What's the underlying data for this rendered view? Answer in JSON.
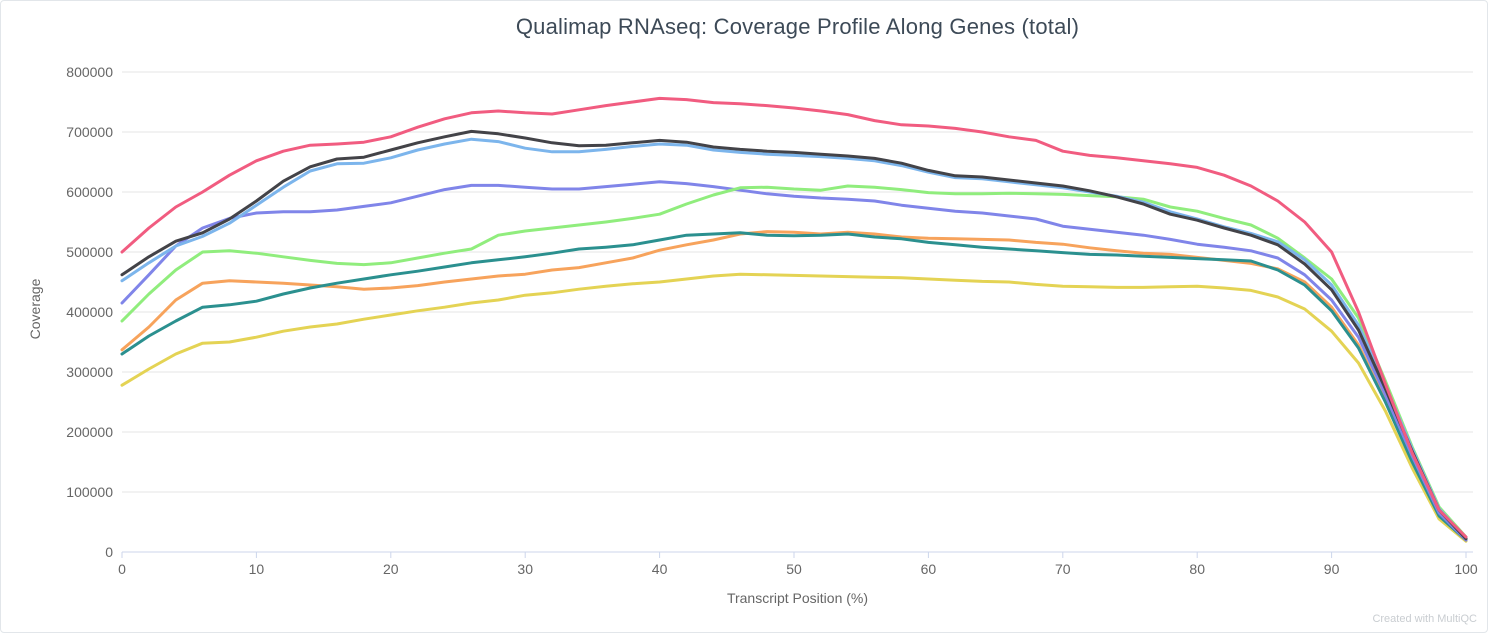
{
  "chart_data": {
    "type": "line",
    "title": "Qualimap RNAseq: Coverage Profile Along Genes (total)",
    "xlabel": "Transcript Position (%)",
    "ylabel": "Coverage",
    "watermark": "Created with MultiQC",
    "xlim": [
      0,
      100
    ],
    "ylim": [
      0,
      800000
    ],
    "x_ticks": [
      0,
      10,
      20,
      30,
      40,
      50,
      60,
      70,
      80,
      90,
      100
    ],
    "y_ticks": [
      0,
      100000,
      200000,
      300000,
      400000,
      500000,
      600000,
      700000,
      800000
    ],
    "grid": true,
    "legend": "none",
    "grid_color": "#e6e6e6",
    "axis_line_color": "#ccd6eb",
    "tick_label_color": "#666666",
    "x": [
      0,
      2,
      4,
      6,
      8,
      10,
      12,
      14,
      16,
      18,
      20,
      22,
      24,
      26,
      28,
      30,
      32,
      34,
      36,
      38,
      40,
      42,
      44,
      46,
      48,
      50,
      52,
      54,
      56,
      58,
      60,
      62,
      64,
      66,
      68,
      70,
      72,
      74,
      76,
      78,
      80,
      82,
      84,
      86,
      88,
      90,
      92,
      94,
      96,
      98,
      100
    ],
    "series": [
      {
        "name": "yellow",
        "color": "#e4d354",
        "values": [
          278000,
          305000,
          330000,
          348000,
          350000,
          358000,
          368000,
          375000,
          380000,
          388000,
          395000,
          402000,
          408000,
          415000,
          420000,
          428000,
          432000,
          438000,
          443000,
          447000,
          450000,
          455000,
          460000,
          463000,
          462000,
          461000,
          460000,
          459000,
          458000,
          457000,
          455000,
          453000,
          451000,
          450000,
          446000,
          443000,
          442000,
          441000,
          441000,
          442000,
          443000,
          440000,
          436000,
          425000,
          405000,
          368000,
          315000,
          235000,
          140000,
          55000,
          18000
        ]
      },
      {
        "name": "orange",
        "color": "#f7a35c",
        "values": [
          337000,
          375000,
          420000,
          448000,
          452000,
          450000,
          448000,
          445000,
          442000,
          438000,
          440000,
          444000,
          450000,
          455000,
          460000,
          463000,
          470000,
          474000,
          482000,
          490000,
          503000,
          512000,
          520000,
          530000,
          534000,
          533000,
          530000,
          533000,
          530000,
          525000,
          523000,
          522000,
          521000,
          520000,
          516000,
          513000,
          507000,
          502000,
          498000,
          496000,
          491000,
          486000,
          481000,
          472000,
          450000,
          408000,
          345000,
          252000,
          152000,
          62000,
          20000
        ]
      },
      {
        "name": "teal",
        "color": "#2b908f",
        "values": [
          330000,
          360000,
          385000,
          408000,
          412000,
          418000,
          430000,
          440000,
          448000,
          455000,
          462000,
          468000,
          475000,
          482000,
          487000,
          492000,
          498000,
          505000,
          508000,
          512000,
          520000,
          528000,
          530000,
          532000,
          528000,
          527000,
          528000,
          530000,
          525000,
          522000,
          516000,
          512000,
          508000,
          505000,
          502000,
          499000,
          496000,
          495000,
          493000,
          491000,
          489000,
          487000,
          485000,
          470000,
          445000,
          402000,
          340000,
          250000,
          150000,
          60000,
          20000
        ]
      },
      {
        "name": "purple",
        "color": "#8085e9",
        "values": [
          415000,
          462000,
          510000,
          540000,
          556000,
          565000,
          567000,
          567000,
          570000,
          576000,
          582000,
          593000,
          604000,
          611000,
          611000,
          608000,
          605000,
          605000,
          609000,
          613000,
          617000,
          614000,
          609000,
          603000,
          597000,
          593000,
          590000,
          588000,
          585000,
          578000,
          573000,
          568000,
          565000,
          560000,
          555000,
          543000,
          538000,
          533000,
          528000,
          521000,
          513000,
          508000,
          502000,
          490000,
          462000,
          420000,
          358000,
          262000,
          160000,
          65000,
          20000
        ]
      },
      {
        "name": "green",
        "color": "#90ed7d",
        "values": [
          385000,
          430000,
          470000,
          500000,
          502000,
          498000,
          492000,
          486000,
          481000,
          479000,
          482000,
          490000,
          498000,
          505000,
          528000,
          535000,
          540000,
          545000,
          550000,
          556000,
          563000,
          580000,
          595000,
          607000,
          608000,
          605000,
          603000,
          610000,
          608000,
          604000,
          599000,
          597000,
          597000,
          598000,
          597000,
          596000,
          594000,
          592000,
          588000,
          575000,
          568000,
          556000,
          545000,
          523000,
          490000,
          455000,
          390000,
          285000,
          175000,
          75000,
          25000
        ]
      },
      {
        "name": "light-blue",
        "color": "#7cb5ec",
        "values": [
          452000,
          482000,
          510000,
          526000,
          548000,
          578000,
          608000,
          635000,
          647000,
          648000,
          657000,
          670000,
          680000,
          688000,
          684000,
          673000,
          667000,
          667000,
          671000,
          676000,
          680000,
          678000,
          670000,
          666000,
          663000,
          661000,
          659000,
          656000,
          652000,
          644000,
          633000,
          624000,
          622000,
          617000,
          612000,
          607000,
          600000,
          593000,
          583000,
          567000,
          555000,
          542000,
          531000,
          517000,
          487000,
          445000,
          378000,
          278000,
          172000,
          72000,
          23000
        ]
      },
      {
        "name": "black",
        "color": "#434348",
        "values": [
          462000,
          492000,
          518000,
          532000,
          555000,
          585000,
          618000,
          642000,
          655000,
          658000,
          670000,
          682000,
          692000,
          701000,
          697000,
          690000,
          682000,
          677000,
          678000,
          682000,
          686000,
          683000,
          675000,
          671000,
          668000,
          666000,
          663000,
          660000,
          656000,
          648000,
          636000,
          627000,
          625000,
          620000,
          615000,
          610000,
          602000,
          592000,
          580000,
          563000,
          553000,
          540000,
          528000,
          512000,
          480000,
          437000,
          370000,
          272000,
          168000,
          70000,
          22000
        ]
      },
      {
        "name": "pink",
        "color": "#f15c80",
        "values": [
          500000,
          540000,
          575000,
          600000,
          628000,
          652000,
          668000,
          678000,
          680000,
          683000,
          692000,
          708000,
          722000,
          732000,
          735000,
          732000,
          730000,
          737000,
          744000,
          750000,
          756000,
          754000,
          749000,
          747000,
          744000,
          740000,
          735000,
          729000,
          719000,
          712000,
          710000,
          706000,
          700000,
          692000,
          686000,
          668000,
          661000,
          657000,
          652000,
          647000,
          641000,
          628000,
          610000,
          585000,
          550000,
          500000,
          400000,
          280000,
          165000,
          70000,
          25000
        ]
      }
    ]
  }
}
